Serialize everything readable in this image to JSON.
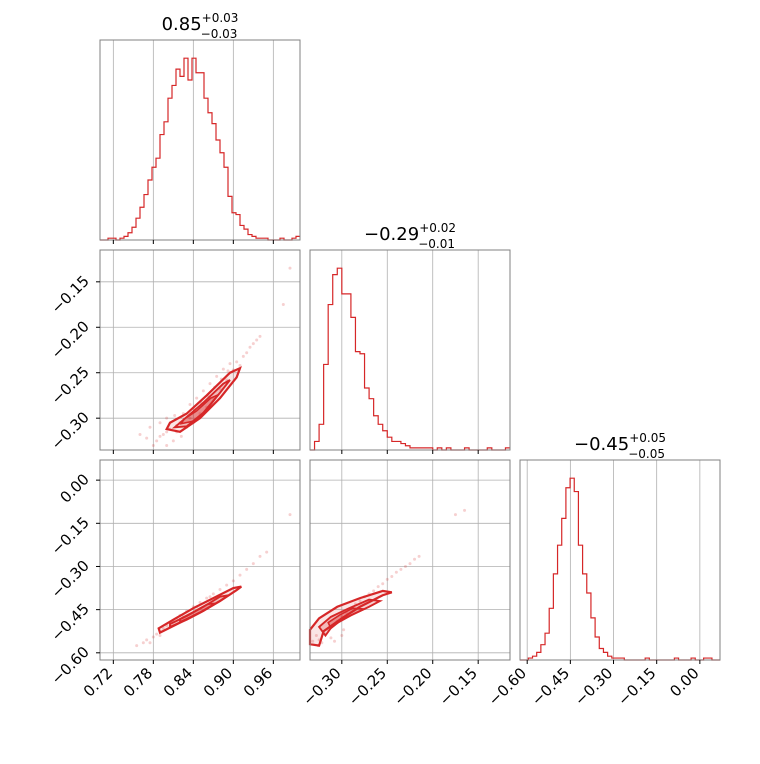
{
  "colors": {
    "series": "#d62728",
    "grid": "#b0b0b0",
    "frame": "#808080",
    "background": "#ffffff"
  },
  "chart_data": {
    "type": "corner",
    "grid": true,
    "titles": [
      {
        "main": "0.85",
        "sup": "+0.03",
        "sub": "−0.03"
      },
      {
        "main": "−0.29",
        "sup": "+0.02",
        "sub": "−0.01"
      },
      {
        "main": "−0.45",
        "sup": "+0.05",
        "sub": "−0.05"
      }
    ],
    "params": [
      {
        "range": [
          0.7,
          1.0
        ],
        "ticks": [
          0.72,
          0.78,
          0.84,
          0.9,
          0.96
        ],
        "tick_labels": [
          "0.72",
          "0.78",
          "0.84",
          "0.90",
          "0.96"
        ]
      },
      {
        "range": [
          -0.335,
          -0.115
        ],
        "ticks": [
          -0.3,
          -0.25,
          -0.2,
          -0.15
        ],
        "tick_labels": [
          "−0.30",
          "−0.25",
          "−0.20",
          "−0.15"
        ]
      },
      {
        "range": [
          -0.625,
          0.07
        ],
        "ticks": [
          -0.6,
          -0.45,
          -0.3,
          -0.15,
          0.0
        ],
        "tick_labels": [
          "−0.60",
          "−0.45",
          "−0.30",
          "−0.15",
          "0.00"
        ]
      }
    ],
    "histograms": [
      {
        "bin_start": 0.7,
        "bin_width": 0.006,
        "counts": [
          0,
          0,
          1,
          1,
          0,
          1,
          2,
          4,
          7,
          12,
          18,
          25,
          33,
          40,
          45,
          58,
          65,
          78,
          85,
          94,
          90,
          100,
          88,
          100,
          92,
          92,
          78,
          70,
          64,
          55,
          48,
          40,
          24,
          15,
          14,
          8,
          6,
          3,
          2,
          1,
          1,
          1,
          0,
          0,
          0,
          1,
          0,
          0,
          1,
          2
        ]
      },
      {
        "bin_start": -0.335,
        "bin_width": 0.005,
        "counts": [
          0,
          4,
          12,
          40,
          68,
          82,
          85,
          73,
          73,
          62,
          46,
          45,
          29,
          24,
          16,
          12,
          9,
          6,
          4,
          4,
          3,
          2,
          1,
          1,
          1,
          1,
          1,
          0,
          1,
          0,
          1,
          0,
          0,
          0,
          1,
          0,
          0,
          0,
          0,
          1,
          0,
          0,
          0,
          1
        ]
      },
      {
        "bin_start": -0.625,
        "bin_width": 0.0145,
        "counts": [
          0,
          0,
          1,
          2,
          4,
          8,
          14,
          27,
          45,
          60,
          74,
          90,
          95,
          88,
          60,
          45,
          35,
          22,
          12,
          6,
          4,
          2,
          1,
          1,
          1,
          0,
          0,
          0,
          0,
          0,
          1,
          0,
          0,
          0,
          0,
          0,
          0,
          1,
          0,
          0,
          0,
          1,
          0,
          0,
          1,
          1,
          0,
          0
        ]
      }
    ],
    "pairs": [
      {
        "x": 0,
        "y": 1,
        "points": [
          [
            0.76,
            -0.318
          ],
          [
            0.77,
            -0.322
          ],
          [
            0.775,
            -0.31
          ],
          [
            0.785,
            -0.325
          ],
          [
            0.79,
            -0.305
          ],
          [
            0.795,
            -0.318
          ],
          [
            0.8,
            -0.33
          ],
          [
            0.8,
            -0.3
          ],
          [
            0.805,
            -0.312
          ],
          [
            0.81,
            -0.325
          ],
          [
            0.812,
            -0.297
          ],
          [
            0.815,
            -0.315
          ],
          [
            0.82,
            -0.305
          ],
          [
            0.822,
            -0.32
          ],
          [
            0.825,
            -0.295
          ],
          [
            0.83,
            -0.31
          ],
          [
            0.832,
            -0.298
          ],
          [
            0.835,
            -0.285
          ],
          [
            0.84,
            -0.305
          ],
          [
            0.842,
            -0.29
          ],
          [
            0.845,
            -0.278
          ],
          [
            0.85,
            -0.295
          ],
          [
            0.852,
            -0.283
          ],
          [
            0.855,
            -0.27
          ],
          [
            0.86,
            -0.288
          ],
          [
            0.862,
            -0.275
          ],
          [
            0.865,
            -0.262
          ],
          [
            0.87,
            -0.278
          ],
          [
            0.872,
            -0.266
          ],
          [
            0.875,
            -0.254
          ],
          [
            0.88,
            -0.268
          ],
          [
            0.882,
            -0.257
          ],
          [
            0.885,
            -0.246
          ],
          [
            0.89,
            -0.258
          ],
          [
            0.892,
            -0.248
          ],
          [
            0.895,
            -0.24
          ],
          [
            0.9,
            -0.247
          ],
          [
            0.905,
            -0.238
          ],
          [
            0.91,
            -0.242
          ],
          [
            0.915,
            -0.232
          ],
          [
            0.92,
            -0.228
          ],
          [
            0.925,
            -0.222
          ],
          [
            0.93,
            -0.218
          ],
          [
            0.935,
            -0.214
          ],
          [
            0.94,
            -0.21
          ],
          [
            0.78,
            -0.33
          ],
          [
            0.79,
            -0.32
          ],
          [
            0.8,
            -0.315
          ],
          [
            0.815,
            -0.308
          ],
          [
            0.835,
            -0.3
          ],
          [
            0.985,
            -0.135
          ],
          [
            0.975,
            -0.175
          ]
        ],
        "contours": [
          [
            [
              0.8,
              -0.312
            ],
            [
              0.82,
              -0.315
            ],
            [
              0.85,
              -0.3
            ],
            [
              0.88,
              -0.278
            ],
            [
              0.905,
              -0.255
            ],
            [
              0.91,
              -0.245
            ],
            [
              0.895,
              -0.25
            ],
            [
              0.86,
              -0.275
            ],
            [
              0.83,
              -0.295
            ],
            [
              0.805,
              -0.305
            ]
          ],
          [
            [
              0.812,
              -0.31
            ],
            [
              0.83,
              -0.309
            ],
            [
              0.855,
              -0.294
            ],
            [
              0.88,
              -0.272
            ],
            [
              0.895,
              -0.258
            ],
            [
              0.885,
              -0.262
            ],
            [
              0.855,
              -0.283
            ],
            [
              0.828,
              -0.3
            ]
          ],
          [
            [
              0.822,
              -0.306
            ],
            [
              0.842,
              -0.303
            ],
            [
              0.862,
              -0.289
            ],
            [
              0.878,
              -0.274
            ],
            [
              0.866,
              -0.278
            ],
            [
              0.845,
              -0.292
            ],
            [
              0.826,
              -0.301
            ]
          ]
        ]
      },
      {
        "x": 0,
        "y": 2,
        "points": [
          [
            0.755,
            -0.575
          ],
          [
            0.765,
            -0.565
          ],
          [
            0.77,
            -0.555
          ],
          [
            0.78,
            -0.545
          ],
          [
            0.785,
            -0.535
          ],
          [
            0.79,
            -0.525
          ],
          [
            0.795,
            -0.515
          ],
          [
            0.8,
            -0.505
          ],
          [
            0.805,
            -0.495
          ],
          [
            0.81,
            -0.49
          ],
          [
            0.815,
            -0.48
          ],
          [
            0.82,
            -0.47
          ],
          [
            0.83,
            -0.455
          ],
          [
            0.84,
            -0.44
          ],
          [
            0.85,
            -0.425
          ],
          [
            0.86,
            -0.41
          ],
          [
            0.87,
            -0.395
          ],
          [
            0.88,
            -0.38
          ],
          [
            0.89,
            -0.365
          ],
          [
            0.9,
            -0.35
          ],
          [
            0.91,
            -0.33
          ],
          [
            0.92,
            -0.31
          ],
          [
            0.93,
            -0.29
          ],
          [
            0.94,
            -0.265
          ],
          [
            0.95,
            -0.25
          ],
          [
            0.985,
            -0.12
          ],
          [
            0.775,
            -0.565
          ],
          [
            0.79,
            -0.54
          ],
          [
            0.805,
            -0.51
          ],
          [
            0.825,
            -0.475
          ],
          [
            0.845,
            -0.44
          ],
          [
            0.865,
            -0.405
          ]
        ],
        "contours": [
          [
            [
              0.79,
              -0.53
            ],
            [
              0.82,
              -0.495
            ],
            [
              0.85,
              -0.46
            ],
            [
              0.88,
              -0.42
            ],
            [
              0.905,
              -0.382
            ],
            [
              0.912,
              -0.37
            ],
            [
              0.9,
              -0.375
            ],
            [
              0.87,
              -0.41
            ],
            [
              0.84,
              -0.445
            ],
            [
              0.81,
              -0.485
            ],
            [
              0.788,
              -0.515
            ]
          ],
          [
            [
              0.805,
              -0.51
            ],
            [
              0.83,
              -0.485
            ],
            [
              0.855,
              -0.455
            ],
            [
              0.88,
              -0.42
            ],
            [
              0.892,
              -0.4
            ],
            [
              0.88,
              -0.405
            ],
            [
              0.855,
              -0.44
            ],
            [
              0.83,
              -0.472
            ],
            [
              0.805,
              -0.5
            ]
          ],
          [
            [
              0.82,
              -0.492
            ],
            [
              0.84,
              -0.472
            ],
            [
              0.862,
              -0.445
            ],
            [
              0.872,
              -0.428
            ],
            [
              0.86,
              -0.432
            ],
            [
              0.84,
              -0.458
            ],
            [
              0.82,
              -0.482
            ]
          ]
        ]
      },
      {
        "x": 1,
        "y": 2,
        "points": [
          [
            -0.325,
            -0.555
          ],
          [
            -0.328,
            -0.54
          ],
          [
            -0.322,
            -0.565
          ],
          [
            -0.318,
            -0.535
          ],
          [
            -0.315,
            -0.52
          ],
          [
            -0.312,
            -0.548
          ],
          [
            -0.31,
            -0.505
          ],
          [
            -0.305,
            -0.49
          ],
          [
            -0.3,
            -0.475
          ],
          [
            -0.298,
            -0.52
          ],
          [
            -0.295,
            -0.46
          ],
          [
            -0.29,
            -0.445
          ],
          [
            -0.285,
            -0.43
          ],
          [
            -0.28,
            -0.42
          ],
          [
            -0.275,
            -0.405
          ],
          [
            -0.27,
            -0.395
          ],
          [
            -0.265,
            -0.385
          ],
          [
            -0.26,
            -0.37
          ],
          [
            -0.255,
            -0.36
          ],
          [
            -0.25,
            -0.345
          ],
          [
            -0.245,
            -0.335
          ],
          [
            -0.24,
            -0.32
          ],
          [
            -0.235,
            -0.31
          ],
          [
            -0.23,
            -0.3
          ],
          [
            -0.225,
            -0.29
          ],
          [
            -0.22,
            -0.275
          ],
          [
            -0.215,
            -0.265
          ],
          [
            -0.175,
            -0.12
          ],
          [
            -0.165,
            -0.105
          ],
          [
            -0.332,
            -0.56
          ],
          [
            -0.326,
            -0.575
          ],
          [
            -0.308,
            -0.56
          ],
          [
            -0.3,
            -0.54
          ]
        ],
        "contours": [
          [
            [
              -0.325,
              -0.575
            ],
            [
              -0.32,
              -0.525
            ],
            [
              -0.3,
              -0.48
            ],
            [
              -0.28,
              -0.44
            ],
            [
              -0.255,
              -0.4
            ],
            [
              -0.245,
              -0.39
            ],
            [
              -0.255,
              -0.385
            ],
            [
              -0.28,
              -0.41
            ],
            [
              -0.305,
              -0.44
            ],
            [
              -0.325,
              -0.48
            ],
            [
              -0.335,
              -0.52
            ],
            [
              -0.335,
              -0.57
            ]
          ],
          [
            [
              -0.318,
              -0.54
            ],
            [
              -0.31,
              -0.505
            ],
            [
              -0.29,
              -0.47
            ],
            [
              -0.27,
              -0.44
            ],
            [
              -0.258,
              -0.42
            ],
            [
              -0.27,
              -0.415
            ],
            [
              -0.292,
              -0.445
            ],
            [
              -0.312,
              -0.475
            ],
            [
              -0.325,
              -0.51
            ]
          ],
          [
            [
              -0.312,
              -0.515
            ],
            [
              -0.3,
              -0.485
            ],
            [
              -0.285,
              -0.462
            ],
            [
              -0.275,
              -0.448
            ],
            [
              -0.288,
              -0.445
            ],
            [
              -0.302,
              -0.468
            ],
            [
              -0.315,
              -0.495
            ]
          ]
        ]
      }
    ]
  }
}
